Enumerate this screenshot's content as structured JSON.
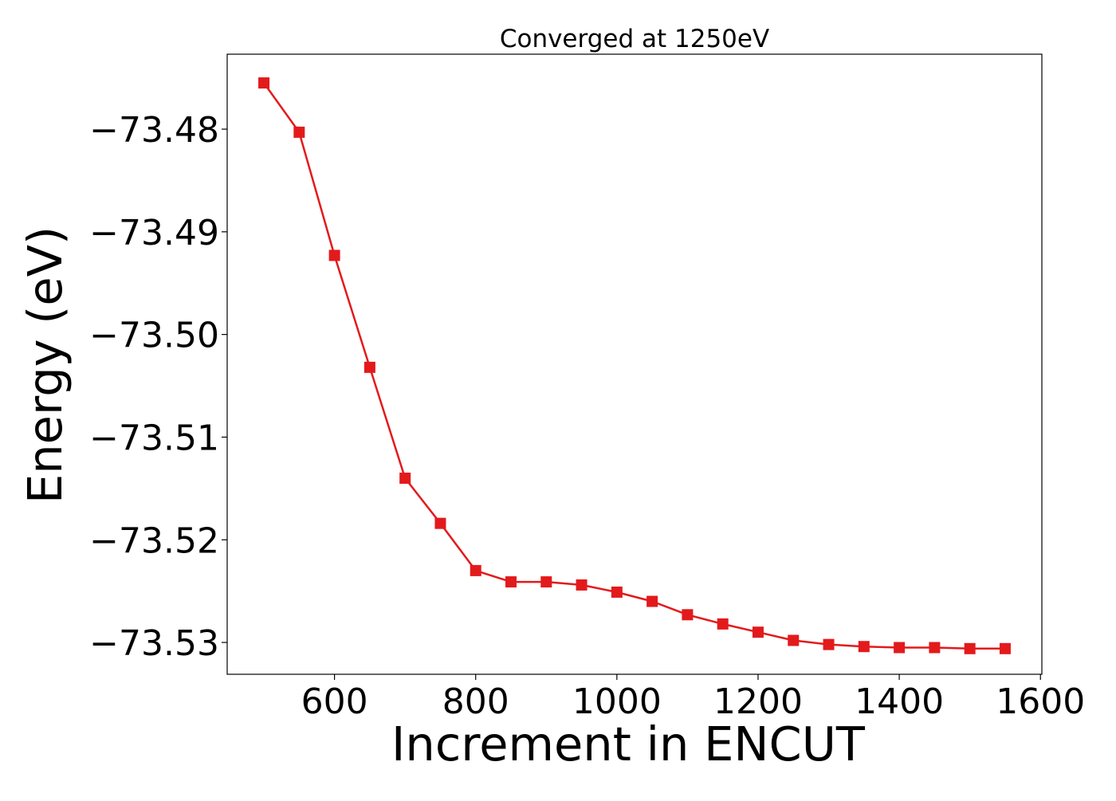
{
  "chart_data": {
    "type": "line",
    "title": "Converged at 1250eV",
    "xlabel": "Increment in ENCUT",
    "ylabel": "Energy (eV)",
    "xlim": [
      448,
      1602
    ],
    "ylim": [
      -73.5331,
      -73.4727
    ],
    "xticks": [
      600,
      800,
      1000,
      1200,
      1400,
      1600
    ],
    "xtick_labels": [
      "600",
      "800",
      "1000",
      "1200",
      "1400",
      "1600"
    ],
    "yticks": [
      -73.48,
      -73.49,
      -73.5,
      -73.51,
      -73.52,
      -73.53
    ],
    "ytick_labels": [
      "−73.48",
      "−73.49",
      "−73.50",
      "−73.51",
      "−73.52",
      "−73.53"
    ],
    "grid": false,
    "legend": "none",
    "series": [
      {
        "color": "#e31a1c",
        "marker": "square",
        "x": [
          500,
          550,
          600,
          650,
          700,
          750,
          800,
          850,
          900,
          950,
          1000,
          1050,
          1100,
          1150,
          1200,
          1250,
          1300,
          1350,
          1400,
          1450,
          1500,
          1550
        ],
        "y": [
          -73.4755,
          -73.4803,
          -73.4923,
          -73.5032,
          -73.514,
          -73.5184,
          -73.523,
          -73.5241,
          -73.5241,
          -73.5244,
          -73.5251,
          -73.526,
          -73.5273,
          -73.5282,
          -73.529,
          -73.5298,
          -73.5302,
          -73.5304,
          -73.5305,
          -73.5305,
          -73.5306,
          -73.5306
        ]
      }
    ]
  }
}
